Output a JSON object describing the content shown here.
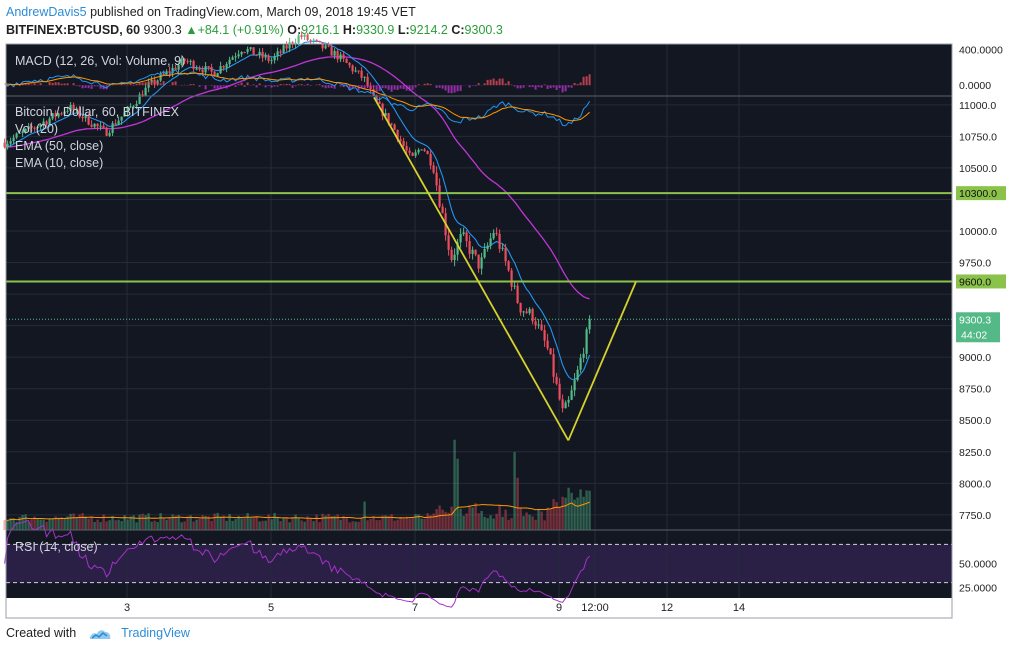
{
  "header": {
    "author": "AndrewDavis5",
    "published": "published on TradingView.com, March 09, 2018 19:45 VET",
    "symbol": "BITFINEX:BTCUSD, 60",
    "last": "9300.3",
    "change": "+84.1 (+0.91%)",
    "open_label": "O:",
    "open": "9216.1",
    "high_label": "H:",
    "high": "9330.9",
    "low_label": "L:",
    "low": "9214.2",
    "close_label": "C:",
    "close": "9300.3"
  },
  "footer": {
    "created_with": "Created with",
    "brand": "TradingView"
  },
  "colors": {
    "background": "#131722",
    "up": "#53b987",
    "down": "#eb4d5c",
    "ema_slow": "#c235d6",
    "ema_fast": "#2196f3",
    "level": "#8bc34a",
    "trend": "#d6d12b",
    "rsi": "#a531c9",
    "price_tag": "#53b987"
  },
  "chart_data": {
    "type": "candlestick",
    "instrument": "Bitcoin / Dollar, 60, BITFINEX",
    "indicators": [
      "Vol (20)",
      "EMA (50, close)",
      "EMA (10, close)"
    ],
    "macd_label": "MACD (12, 26, Vol: Volume, 9)",
    "rsi_label": "RSI (14, close)",
    "x_ticks": [
      {
        "label": "3",
        "day": 3
      },
      {
        "label": "5",
        "day": 5
      },
      {
        "label": "7",
        "day": 7
      },
      {
        "label": "9",
        "day": 9
      },
      {
        "label": "12:00",
        "day": 9.5
      },
      {
        "label": "12",
        "day": 10.5
      },
      {
        "label": "14",
        "day": 11.5
      }
    ],
    "price_ticks": [
      "11000.0",
      "10750.0",
      "10500.0",
      "10250.0",
      "10000.0",
      "9750.0",
      "9500.0",
      "9250.0",
      "9000.0",
      "8750.0",
      "8500.0",
      "8250.0",
      "8000.0",
      "7750.0"
    ],
    "price_ylim": [
      7630,
      11070
    ],
    "macd_ticks": [
      "400.0000",
      "0.0000"
    ],
    "macd_ylim": [
      -120,
      460
    ],
    "rsi_ticks": [
      "50.0000",
      "25.0000"
    ],
    "rsi_ylim": [
      14,
      85
    ],
    "rsi_bands": [
      70,
      30
    ],
    "levels": [
      {
        "label": "10300.0",
        "value": 10300
      },
      {
        "label": "9600.0",
        "value": 9600
      }
    ],
    "last_price": {
      "label": "9300.3",
      "value": 9300.3,
      "countdown": "44:02"
    },
    "trend_lines": [
      [
        {
          "day": 6.43,
          "price": 11060
        },
        {
          "day": 9.13,
          "price": 8340
        }
      ],
      [
        {
          "day": 9.13,
          "price": 8340
        },
        {
          "day": 10.07,
          "price": 9600
        }
      ]
    ],
    "start_day": 1.3,
    "end_day": 9.45,
    "price_path": [
      [
        1.3,
        10700
      ],
      [
        1.8,
        10850
      ],
      [
        2.2,
        10980
      ],
      [
        2.7,
        10780
      ],
      [
        3.0,
        10950
      ],
      [
        3.3,
        11150
      ],
      [
        3.8,
        11350
      ],
      [
        4.2,
        11250
      ],
      [
        4.6,
        11450
      ],
      [
        5.0,
        11350
      ],
      [
        5.4,
        11550
      ],
      [
        5.9,
        11400
      ],
      [
        6.3,
        11200
      ],
      [
        6.43,
        11040
      ],
      [
        6.7,
        10820
      ],
      [
        6.95,
        10560
      ],
      [
        7.1,
        10680
      ],
      [
        7.25,
        10520
      ],
      [
        7.5,
        9780
      ],
      [
        7.65,
        9960
      ],
      [
        7.9,
        9720
      ],
      [
        8.1,
        10010
      ],
      [
        8.3,
        9680
      ],
      [
        8.45,
        9400
      ],
      [
        8.65,
        9320
      ],
      [
        8.85,
        9050
      ],
      [
        9.05,
        8560
      ],
      [
        9.12,
        8610
      ],
      [
        9.25,
        8860
      ],
      [
        9.35,
        9100
      ],
      [
        9.45,
        9300
      ]
    ],
    "volume_spikes": [
      [
        7.55,
        0.95
      ],
      [
        7.6,
        0.75
      ],
      [
        8.4,
        0.82
      ],
      [
        8.42,
        0.55
      ],
      [
        9.05,
        0.35
      ],
      [
        6.3,
        0.3
      ]
    ]
  }
}
